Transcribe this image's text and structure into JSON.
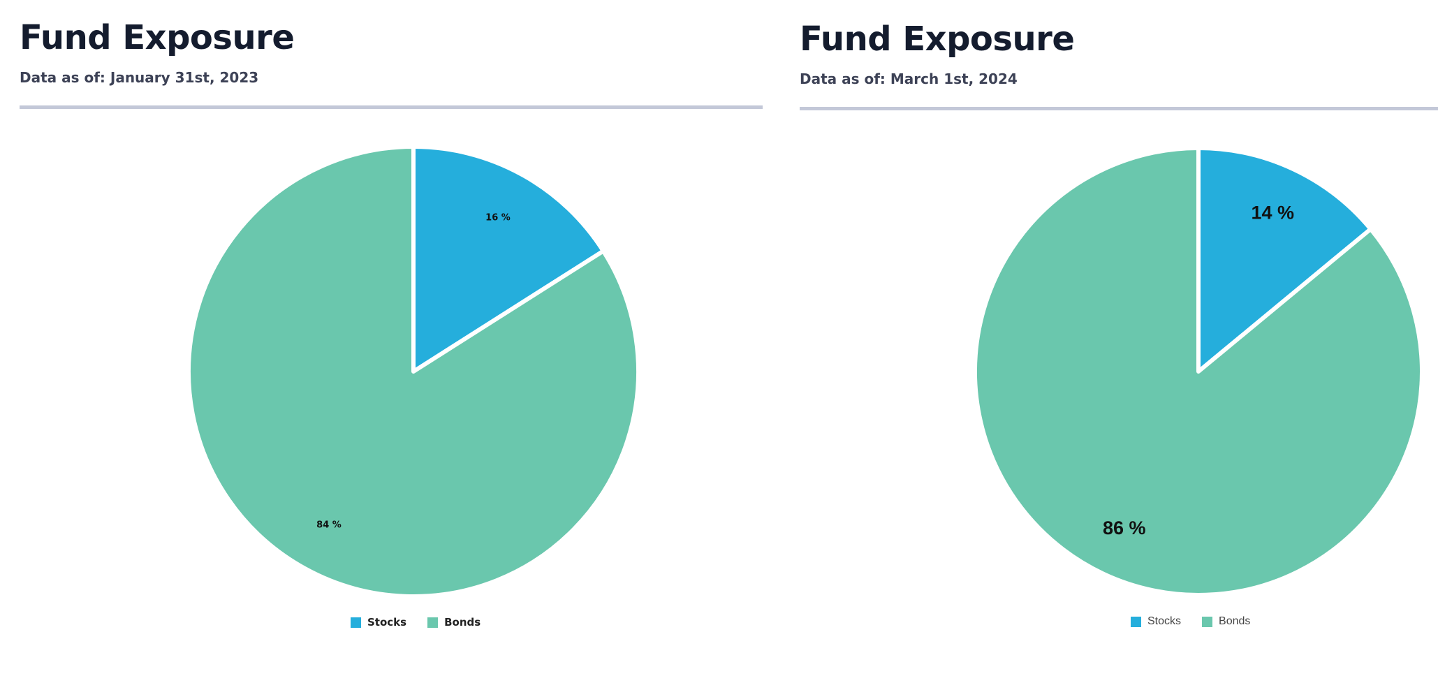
{
  "panels": [
    {
      "title": "Fund Exposure",
      "subtitle": "Data as of: January 31st, 2023"
    },
    {
      "title": "Fund Exposure",
      "subtitle": "Data as of: March 1st, 2024"
    }
  ],
  "colors": {
    "stocks": "#25aedc",
    "bonds": "#6ac7ad",
    "title": "#141c2e",
    "subtitle": "#3d4256",
    "rule": "#c3c8d8"
  },
  "chart_data": [
    {
      "type": "pie",
      "title": "",
      "categories": [
        "Stocks",
        "Bonds"
      ],
      "values": [
        16,
        84
      ],
      "labels": [
        "16 %",
        "84 %"
      ],
      "colors": [
        "#25aedc",
        "#6ac7ad"
      ],
      "legend": "bottom"
    },
    {
      "type": "pie",
      "title": "",
      "categories": [
        "Stocks",
        "Bonds"
      ],
      "values": [
        14,
        86
      ],
      "labels": [
        "14 %",
        "86 %"
      ],
      "colors": [
        "#25aedc",
        "#6ac7ad"
      ],
      "legend": "bottom"
    }
  ]
}
